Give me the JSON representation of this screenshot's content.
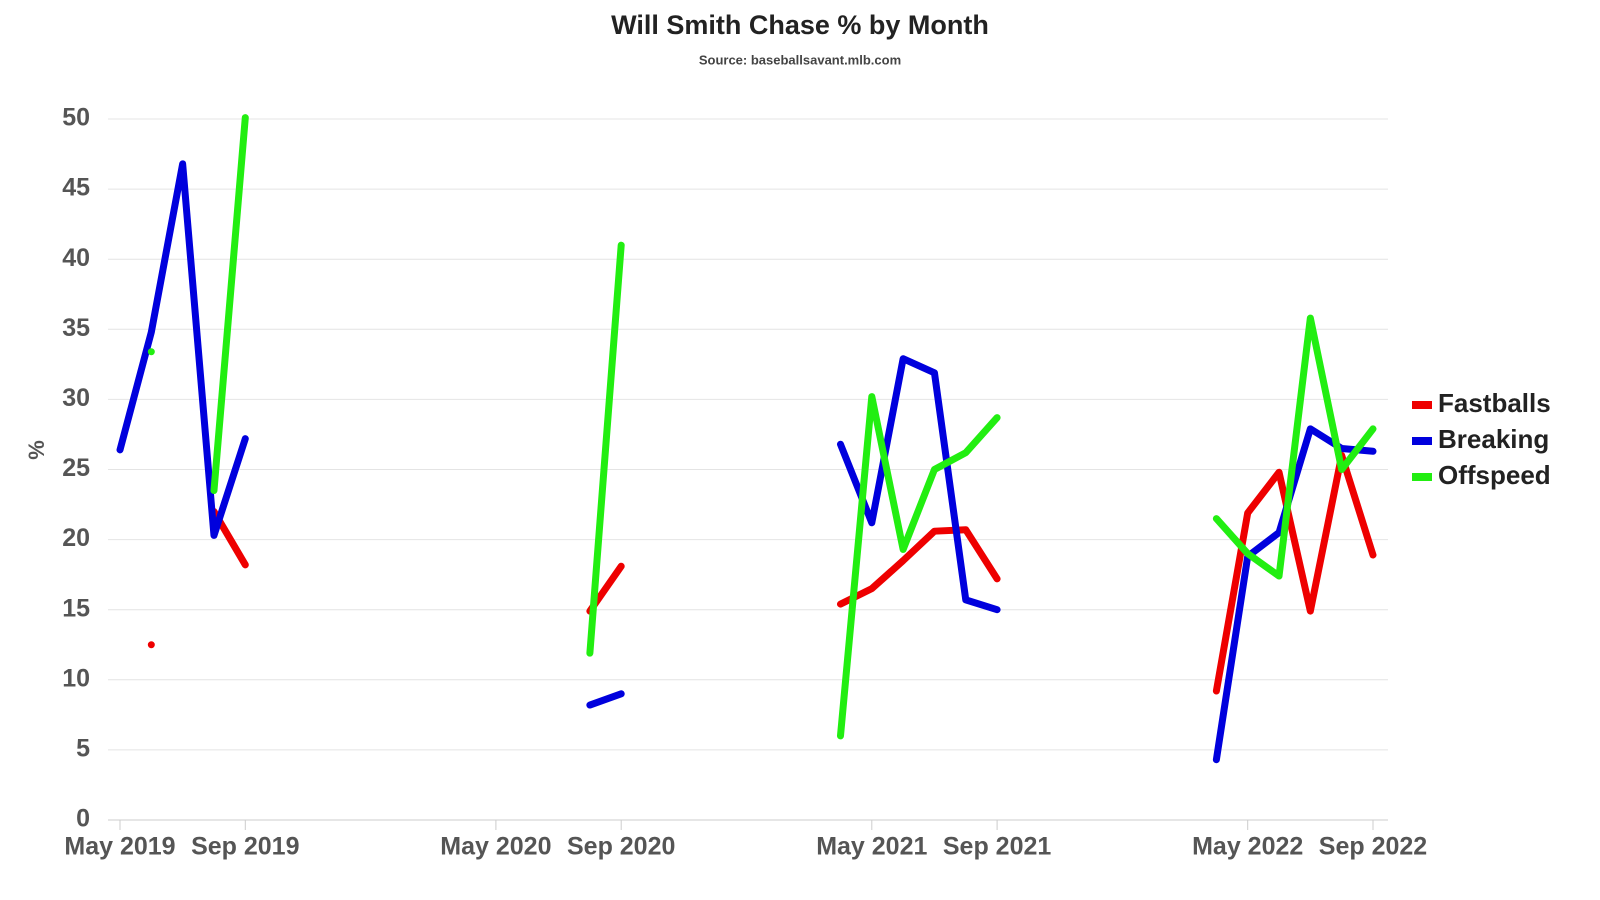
{
  "chart_data": {
    "type": "line",
    "title": "Will Smith Chase % by Month",
    "subtitle": "Source: baseballsavant.mlb.com",
    "y_label": "%",
    "categories": [
      "May 2019",
      null,
      null,
      null,
      "Sep 2019",
      null,
      null,
      null,
      null,
      null,
      null,
      null,
      "May 2020",
      null,
      null,
      null,
      "Sep 2020",
      null,
      null,
      null,
      null,
      null,
      null,
      null,
      "May 2021",
      null,
      null,
      null,
      "Sep 2021",
      null,
      null,
      null,
      null,
      null,
      null,
      null,
      "May 2022",
      null,
      null,
      null,
      "Sep 2022"
    ],
    "series": [
      {
        "name": "Fastballs",
        "color": "#ee0000",
        "values": [
          null,
          12.5,
          null,
          22,
          18.2,
          null,
          null,
          null,
          null,
          null,
          null,
          null,
          null,
          null,
          null,
          14.9,
          18.1,
          null,
          null,
          null,
          null,
          null,
          null,
          15.4,
          16.5,
          18.5,
          20.6,
          20.7,
          17.2,
          null,
          null,
          null,
          null,
          null,
          null,
          9.2,
          21.9,
          24.8,
          14.9,
          26.0,
          18.9
        ]
      },
      {
        "name": "Breaking",
        "color": "#0000dd",
        "values": [
          26.4,
          34.8,
          46.8,
          20.3,
          27.2,
          null,
          null,
          null,
          null,
          null,
          null,
          null,
          null,
          null,
          null,
          8.2,
          9.0,
          null,
          null,
          null,
          null,
          null,
          null,
          26.8,
          21.2,
          32.9,
          31.9,
          15.7,
          15.0,
          null,
          null,
          null,
          null,
          null,
          null,
          4.3,
          18.8,
          20.5,
          27.9,
          26.5,
          26.3
        ]
      },
      {
        "name": "Offspeed",
        "color": "#22ee11",
        "values": [
          null,
          33.4,
          null,
          23.5,
          50.1,
          null,
          null,
          null,
          null,
          null,
          null,
          null,
          null,
          null,
          null,
          11.9,
          41.0,
          null,
          null,
          null,
          null,
          null,
          null,
          6.0,
          30.2,
          19.3,
          25.0,
          26.2,
          28.7,
          null,
          null,
          null,
          null,
          null,
          null,
          21.5,
          19.0,
          17.4,
          35.8,
          25.0,
          27.9
        ]
      }
    ],
    "ylim": [
      0,
      50
    ],
    "yticks": [
      0,
      5,
      10,
      15,
      20,
      25,
      30,
      35,
      40,
      45,
      50
    ],
    "grid": true,
    "legend": "right"
  }
}
